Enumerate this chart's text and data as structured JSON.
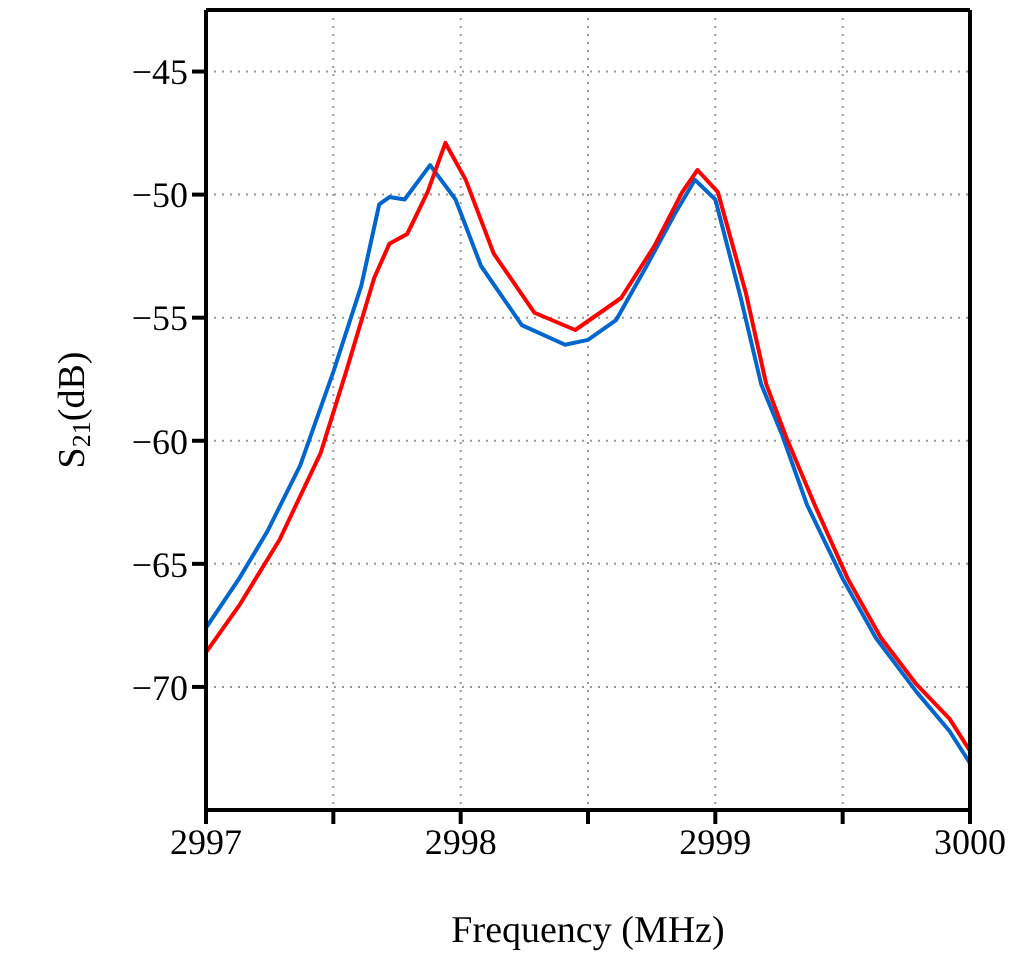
{
  "chart_data": {
    "type": "line",
    "xlabel": "Frequency (MHz)",
    "ylabel": "S$_{21}$(dB)",
    "xlim": [
      2997,
      3000
    ],
    "ylim": [
      -75,
      -42.5
    ],
    "xticks": [
      2997,
      {
        "value": 2997.5,
        "label": null
      },
      2998,
      {
        "value": 2998.5,
        "label": null
      },
      2999,
      {
        "value": 2999.5,
        "label": null
      },
      3000
    ],
    "yticks": [
      -70,
      -65,
      -60,
      -55,
      -50,
      -45
    ],
    "grid": true,
    "marker": "none",
    "line_style": "solid",
    "series": [
      {
        "color": "#0066cc",
        "x": [
          2997.0,
          2997.13,
          2997.24,
          2997.37,
          2997.5,
          2997.61,
          2997.68,
          2997.72,
          2997.78,
          2997.88,
          2997.98,
          2998.08,
          2998.24,
          2998.41,
          2998.5,
          2998.61,
          2998.73,
          2998.84,
          2998.92,
          2999.0,
          2999.1,
          2999.18,
          2999.26,
          2999.36,
          2999.5,
          2999.63,
          2999.79,
          2999.92,
          3000.0
        ],
        "values": [
          -67.6,
          -65.6,
          -63.7,
          -61.0,
          -57.2,
          -53.7,
          -50.4,
          -50.1,
          -50.2,
          -48.8,
          -50.2,
          -52.9,
          -55.3,
          -56.1,
          -55.9,
          -55.1,
          -52.9,
          -50.8,
          -49.4,
          -50.2,
          -54.2,
          -57.7,
          -59.7,
          -62.6,
          -65.6,
          -68.0,
          -70.2,
          -71.8,
          -73.1
        ]
      },
      {
        "color": "#ff0000",
        "x": [
          2997.0,
          2997.13,
          2997.29,
          2997.45,
          2997.55,
          2997.66,
          2997.72,
          2997.79,
          2997.87,
          2997.94,
          2998.02,
          2998.13,
          2998.29,
          2998.45,
          2998.63,
          2998.76,
          2998.87,
          2998.93,
          2999.01,
          2999.12,
          2999.2,
          2999.28,
          2999.39,
          2999.52,
          2999.65,
          2999.79,
          2999.92,
          3000.0
        ],
        "values": [
          -68.6,
          -66.7,
          -64.0,
          -60.5,
          -57.2,
          -53.4,
          -52.0,
          -51.6,
          -49.9,
          -47.9,
          -49.4,
          -52.4,
          -54.8,
          -55.5,
          -54.2,
          -52.1,
          -49.9,
          -49.0,
          -49.9,
          -54.0,
          -57.7,
          -59.9,
          -62.6,
          -65.6,
          -68.0,
          -69.9,
          -71.3,
          -72.6
        ]
      }
    ]
  }
}
